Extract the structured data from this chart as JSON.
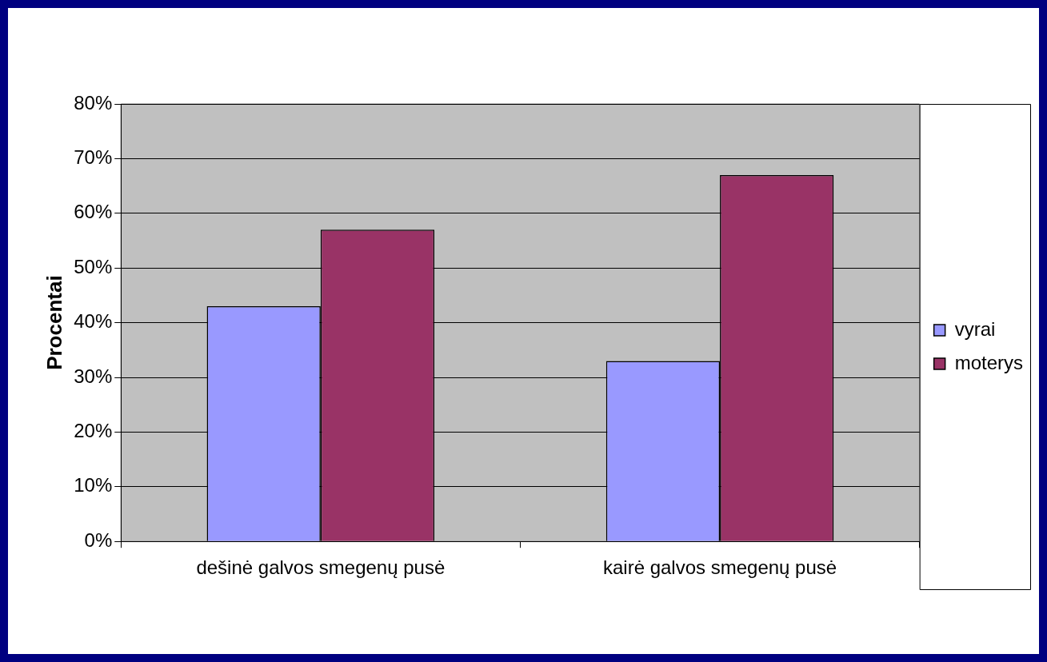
{
  "chart_data": {
    "type": "bar",
    "ylabel": "Procentai",
    "categories": [
      "dešinė galvos smegenų pusė",
      "kairė galvos smegenų pusė"
    ],
    "series": [
      {
        "name": "vyrai",
        "color": "#9999ff",
        "values": [
          43,
          33
        ]
      },
      {
        "name": "moterys",
        "color": "#993366",
        "values": [
          57,
          67
        ]
      }
    ],
    "ylim": [
      0,
      80
    ],
    "yticks": [
      {
        "value": 0,
        "label": "0%"
      },
      {
        "value": 10,
        "label": "10%"
      },
      {
        "value": 20,
        "label": "20%"
      },
      {
        "value": 30,
        "label": "30%"
      },
      {
        "value": 40,
        "label": "40%"
      },
      {
        "value": 50,
        "label": "50%"
      },
      {
        "value": 60,
        "label": "60%"
      },
      {
        "value": 70,
        "label": "70%"
      },
      {
        "value": 80,
        "label": "80%"
      }
    ],
    "grid": "y",
    "legend": "right"
  }
}
